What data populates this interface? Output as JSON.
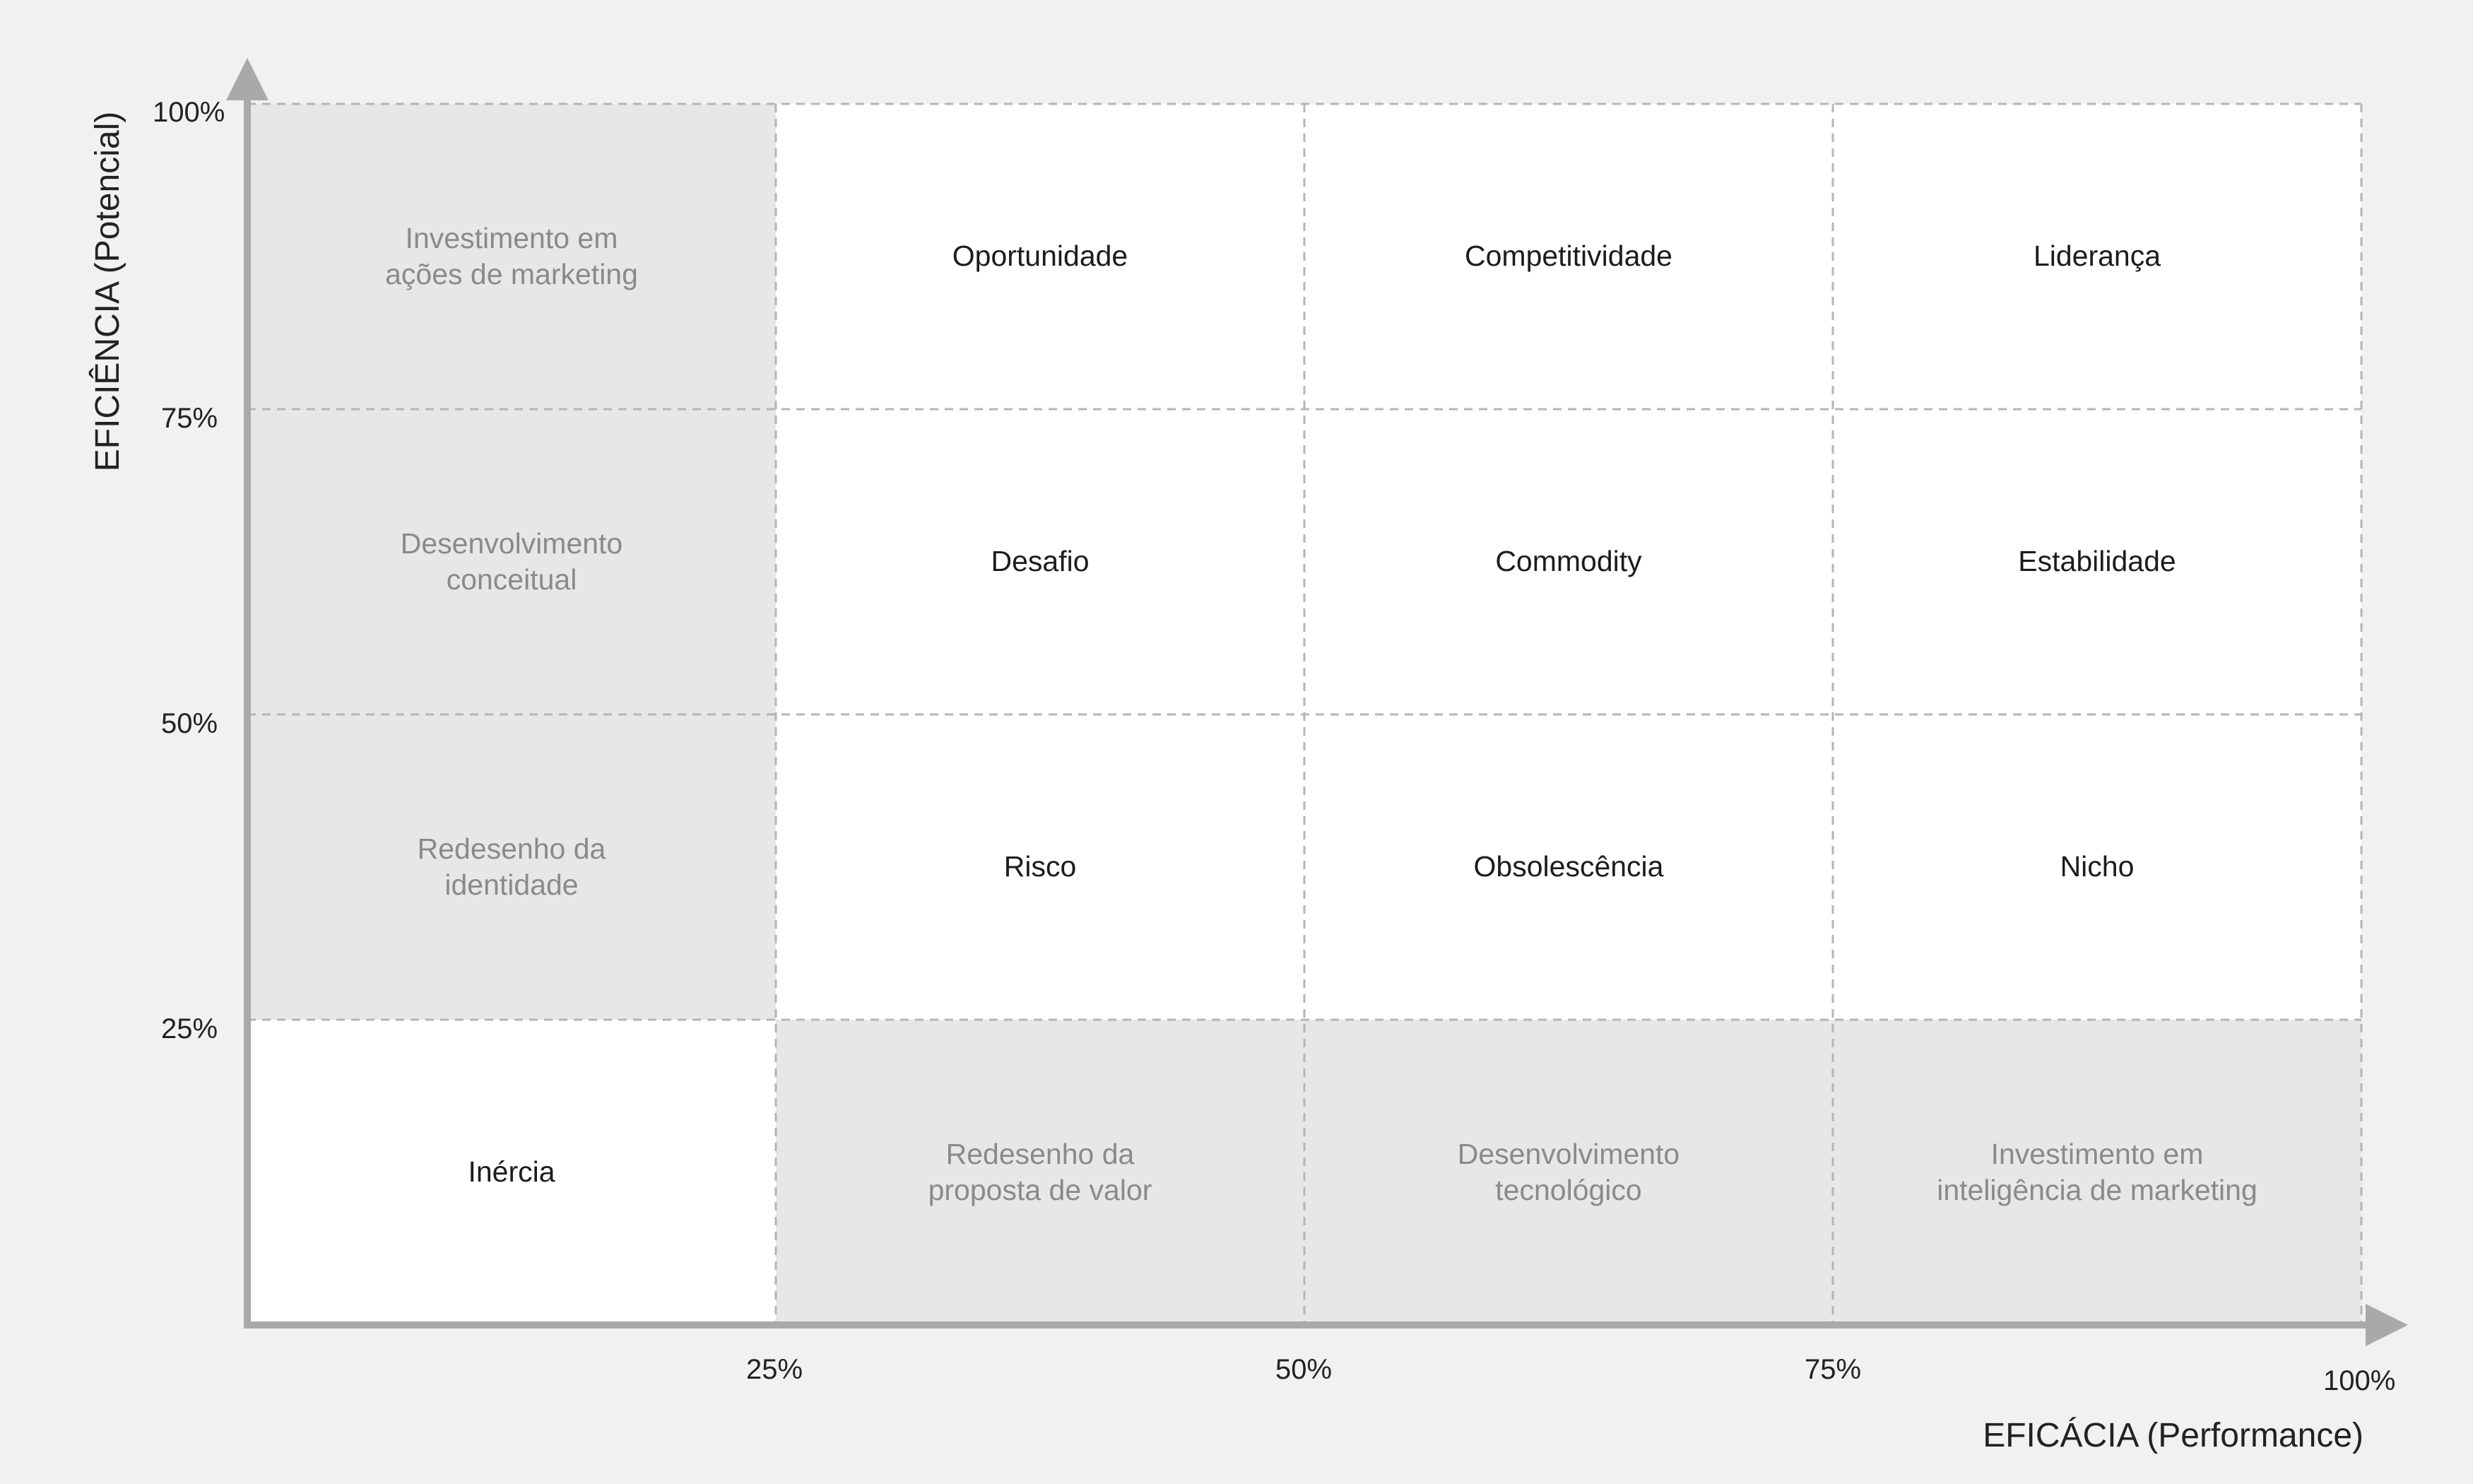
{
  "axes": {
    "x_title": "EFICÁCIA (Performance)",
    "y_title": "EFICIÊNCIA (Potencial)",
    "x_ticks": [
      "25%",
      "50%",
      "75%",
      "100%"
    ],
    "y_ticks": [
      "100%",
      "75%",
      "50%",
      "25%"
    ]
  },
  "matrix": {
    "rows": [
      [
        {
          "label": "Investimento em\nações de marketing",
          "shade": "gray"
        },
        {
          "label": "Oportunidade",
          "shade": "white"
        },
        {
          "label": "Competitividade",
          "shade": "white"
        },
        {
          "label": "Liderança",
          "shade": "white"
        }
      ],
      [
        {
          "label": "Desenvolvimento\nconceitual",
          "shade": "gray"
        },
        {
          "label": "Desafio",
          "shade": "white"
        },
        {
          "label": "Commodity",
          "shade": "white"
        },
        {
          "label": "Estabilidade",
          "shade": "white"
        }
      ],
      [
        {
          "label": "Redesenho da\nidentidade",
          "shade": "gray"
        },
        {
          "label": "Risco",
          "shade": "white"
        },
        {
          "label": "Obsolescência",
          "shade": "white"
        },
        {
          "label": "Nicho",
          "shade": "white"
        }
      ],
      [
        {
          "label": "Inércia",
          "shade": "white"
        },
        {
          "label": "Redesenho da\nproposta de valor",
          "shade": "gray"
        },
        {
          "label": "Desenvolvimento\ntecnológico",
          "shade": "gray"
        },
        {
          "label": "Investimento em\ninteligência de marketing",
          "shade": "gray"
        }
      ]
    ]
  },
  "colors": {
    "background": "#f1f1f1",
    "gray_cell": "#e6e7e8",
    "white_cell": "#ffffff",
    "axis": "#a9a9ab",
    "dashed_grid": "#b5b5b5"
  }
}
